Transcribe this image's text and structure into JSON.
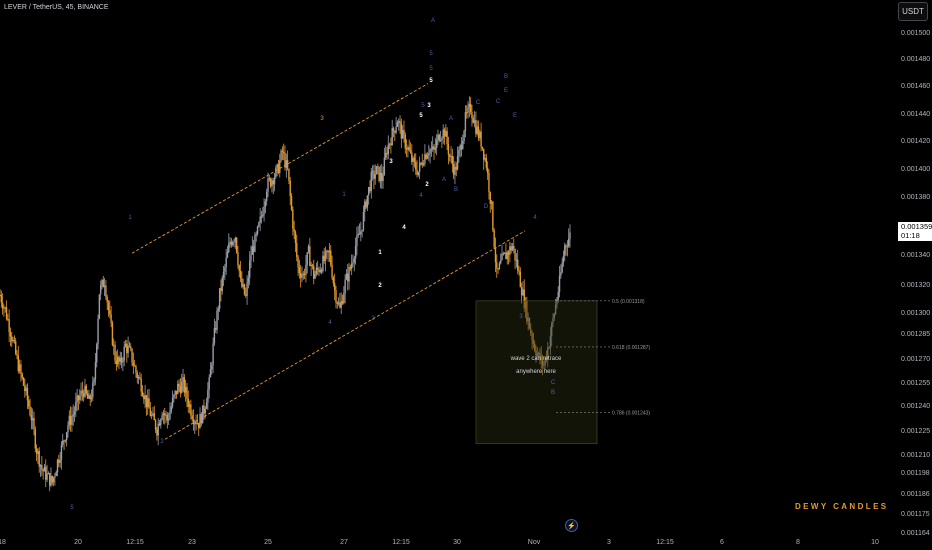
{
  "header": {
    "title": "LEVER / TetherUS, 45, BINANCE",
    "currency": "USDT"
  },
  "price_tag": {
    "price": "0.001359",
    "countdown": "01:18"
  },
  "watermark": "DEWY CANDLES",
  "colors": {
    "background": "#000000",
    "up": "#9aa0aa",
    "down": "#e39a2e",
    "channel": "#e39a2e",
    "wave_dark": "#4b5fa8",
    "text": "#b2b5be"
  },
  "chart_data": {
    "type": "candlestick",
    "ylim": [
      0.001164,
      0.0015
    ],
    "y_ticks": [
      "0.001500",
      "0.001480",
      "0.001460",
      "0.001440",
      "0.001420",
      "0.001400",
      "0.001380",
      "0.001360",
      "0.001340",
      "0.001320",
      "0.001300",
      "0.001285",
      "0.001270",
      "0.001255",
      "0.001240",
      "0.001225",
      "0.001210",
      "0.001198",
      "0.001186",
      "0.001175",
      "0.001164"
    ],
    "x_ticks": [
      "18",
      "20",
      "12:15",
      "23",
      "25",
      "27",
      "12:15",
      "30",
      "Nov",
      "3",
      "12:15",
      "6",
      "8",
      "10"
    ],
    "close_path": [
      0.001322,
      0.001312,
      0.001298,
      0.001282,
      0.001268,
      0.001255,
      0.00124,
      0.001218,
      0.001205,
      0.0012,
      0.001196,
      0.00121,
      0.001222,
      0.001235,
      0.001242,
      0.001252,
      0.001258,
      0.00125,
      0.001262,
      0.001324,
      0.001332,
      0.001305,
      0.00128,
      0.001275,
      0.001288,
      0.001282,
      0.00127,
      0.001262,
      0.00125,
      0.00124,
      0.001232,
      0.001245,
      0.001238,
      0.00125,
      0.00126,
      0.001262,
      0.00125,
      0.00124,
      0.001236,
      0.001245,
      0.001262,
      0.001295,
      0.001322,
      0.00134,
      0.001358,
      0.001362,
      0.00133,
      0.00132,
      0.00135,
      0.00136,
      0.001375,
      0.001395,
      0.0014,
      0.001405,
      0.001418,
      0.001405,
      0.00137,
      0.00134,
      0.001335,
      0.00135,
      0.001335,
      0.00134,
      0.001345,
      0.00135,
      0.001325,
      0.001312,
      0.00133,
      0.00134,
      0.001355,
      0.001365,
      0.001385,
      0.0014,
      0.001405,
      0.0014,
      0.00142,
      0.00143,
      0.00144,
      0.001428,
      0.00142,
      0.00141,
      0.001405,
      0.001415,
      0.00142,
      0.001418,
      0.00143,
      0.001432,
      0.001415,
      0.001405,
      0.00142,
      0.00144,
      0.001448,
      0.001435,
      0.001425,
      0.00141,
      0.00138,
      0.001335,
      0.001345,
      0.00135,
      0.001355,
      0.00134,
      0.001322,
      0.001305,
      0.00129,
      0.00128,
      0.001275,
      0.00129,
      0.00131,
      0.00133,
      0.001355,
      0.001362
    ],
    "channel": {
      "upper": [
        [
          0.00135,
          0.001464
        ]
      ],
      "lower": [
        [
          0.001225,
          0.001365
        ]
      ]
    },
    "fib_levels": [
      {
        "label": "0.5 (0.001318)",
        "value": 0.001318
      },
      {
        "label": "0.618 (0.001287)",
        "value": 0.001287
      },
      {
        "label": "0.786 (0.001243)",
        "value": 0.001243
      }
    ],
    "annotation": [
      "wave 2 can retrace",
      "anywhere here"
    ],
    "wave_labels": [
      "A",
      "5",
      "5",
      "5",
      "3",
      "3",
      "1",
      "4",
      "3",
      "2",
      "4",
      "2",
      "4",
      "1",
      "2",
      "1",
      "5",
      "A",
      "B",
      "C",
      "D",
      "E",
      "B",
      "E",
      "A",
      "C",
      "4",
      "3",
      "C",
      "B"
    ]
  }
}
